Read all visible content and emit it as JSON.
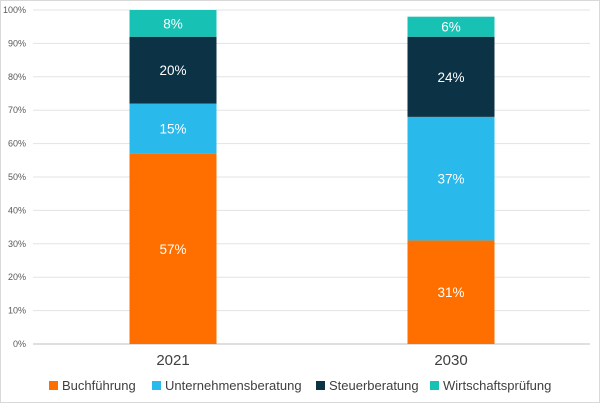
{
  "chart_data": {
    "type": "bar",
    "stacked": true,
    "categories": [
      "2021",
      "2030"
    ],
    "series": [
      {
        "name": "Buchführung",
        "values": [
          57,
          31
        ],
        "labels": [
          "57%",
          "31%"
        ],
        "color": "#ff6f00"
      },
      {
        "name": "Unternehmensberatung",
        "values": [
          15,
          37
        ],
        "labels": [
          "15%",
          "37%"
        ],
        "color": "#29b9ea"
      },
      {
        "name": "Steuerberatung",
        "values": [
          20,
          24
        ],
        "labels": [
          "20%",
          "24%"
        ],
        "color": "#0b3245"
      },
      {
        "name": "Wirtschaftsprüfung",
        "values": [
          8,
          6
        ],
        "labels": [
          "8%",
          "6%"
        ],
        "color": "#17c1b3"
      }
    ],
    "yticks": [
      "0%",
      "10%",
      "20%",
      "30%",
      "40%",
      "50%",
      "60%",
      "70%",
      "80%",
      "90%",
      "100%"
    ],
    "ylim": [
      0,
      100
    ],
    "grid": true,
    "legend_position": "bottom",
    "title": "",
    "xlabel": "",
    "ylabel": ""
  }
}
